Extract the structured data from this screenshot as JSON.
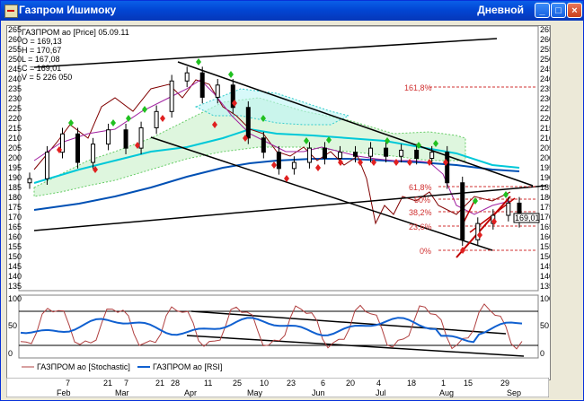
{
  "window": {
    "title": "Газпром Ишимоку",
    "period": "Дневной",
    "buttons": [
      "_",
      "□",
      "×"
    ]
  },
  "legend": {
    "series_name": "ГАЗПРОМ ао [Price] 05.09.11",
    "open": "O = 169,13",
    "high": "H = 170,67",
    "low": "L = 167,08",
    "close": "C = 169,01",
    "volume": "V = 5 226 050"
  },
  "price_axis": {
    "ticks": [
      "265",
      "260",
      "255",
      "250",
      "245",
      "240",
      "235",
      "230",
      "225",
      "220",
      "215",
      "210",
      "205",
      "200",
      "195",
      "190",
      "185",
      "180",
      "175",
      "170",
      "165",
      "160",
      "155",
      "150",
      "145",
      "140",
      "135"
    ],
    "last_price": "169,01"
  },
  "fibonacci": {
    "labels": [
      "161,8%",
      "61,8%",
      "50%",
      "38,2%",
      "23,6%",
      "0%"
    ],
    "levels": [
      235,
      185,
      180,
      176,
      170,
      156
    ]
  },
  "oscillator": {
    "ticks": [
      "100",
      "50",
      "0"
    ],
    "legend_stoch": "ГАЗПРОМ ао [Stochastic]",
    "legend_rsi": "ГАЗПРОМ ао [RSI]"
  },
  "time_axis": {
    "days": [
      "7",
      "21",
      "7",
      "21",
      "28",
      "11",
      "25",
      "10",
      "23",
      "6",
      "20",
      "4",
      "18",
      "1",
      "15",
      "29"
    ],
    "months": [
      "Feb",
      "Mar",
      "Apr",
      "May",
      "Jun",
      "Jul",
      "Aug",
      "Sep"
    ]
  },
  "chart_data": {
    "type": "line",
    "title": "ГАЗПРОМ ао [Price] 05.09.11",
    "ylim": [
      135,
      265
    ],
    "x_range": [
      "2011-01-24",
      "2011-09-05"
    ],
    "price_series": [
      {
        "date": "2011-01-24",
        "close": 190
      },
      {
        "date": "2011-02-01",
        "close": 203
      },
      {
        "date": "2011-02-08",
        "close": 212
      },
      {
        "date": "2011-02-15",
        "close": 198
      },
      {
        "date": "2011-02-22",
        "close": 207
      },
      {
        "date": "2011-03-01",
        "close": 214
      },
      {
        "date": "2011-03-09",
        "close": 205
      },
      {
        "date": "2011-03-16",
        "close": 215
      },
      {
        "date": "2011-03-23",
        "close": 223
      },
      {
        "date": "2011-03-30",
        "close": 238
      },
      {
        "date": "2011-04-06",
        "close": 242
      },
      {
        "date": "2011-04-13",
        "close": 230
      },
      {
        "date": "2011-04-20",
        "close": 236
      },
      {
        "date": "2011-04-27",
        "close": 225
      },
      {
        "date": "2011-05-04",
        "close": 210
      },
      {
        "date": "2011-05-11",
        "close": 203
      },
      {
        "date": "2011-05-18",
        "close": 195
      },
      {
        "date": "2011-05-25",
        "close": 198
      },
      {
        "date": "2011-06-01",
        "close": 205
      },
      {
        "date": "2011-06-08",
        "close": 200
      },
      {
        "date": "2011-06-15",
        "close": 203
      },
      {
        "date": "2011-06-22",
        "close": 201
      },
      {
        "date": "2011-06-29",
        "close": 205
      },
      {
        "date": "2011-07-06",
        "close": 201
      },
      {
        "date": "2011-07-13",
        "close": 204
      },
      {
        "date": "2011-07-20",
        "close": 200
      },
      {
        "date": "2011-07-27",
        "close": 203
      },
      {
        "date": "2011-08-03",
        "close": 188
      },
      {
        "date": "2011-08-10",
        "close": 160
      },
      {
        "date": "2011-08-17",
        "close": 168
      },
      {
        "date": "2011-08-24",
        "close": 172
      },
      {
        "date": "2011-08-31",
        "close": 178
      },
      {
        "date": "2011-09-05",
        "close": 169
      }
    ]
  }
}
